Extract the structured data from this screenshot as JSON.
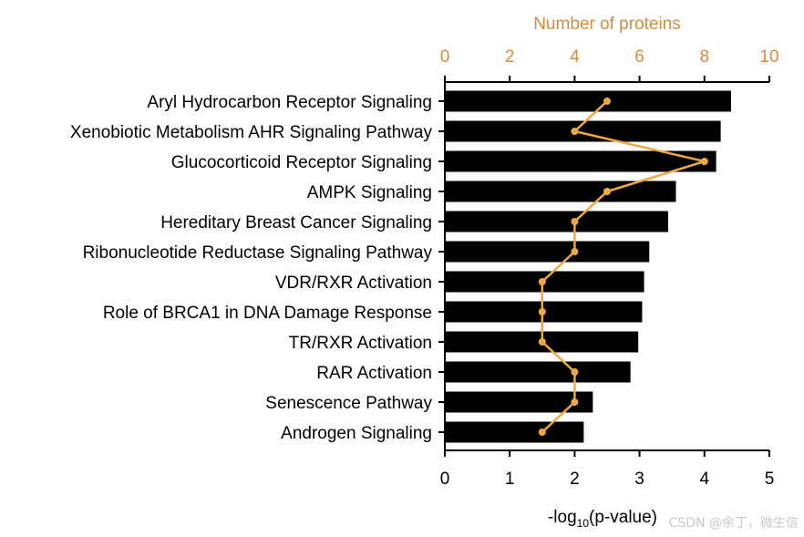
{
  "chart_data": {
    "type": "bar",
    "orientation": "horizontal",
    "categories": [
      "Aryl Hydrocarbon Receptor Signaling",
      "Xenobiotic Metabolism AHR Signaling Pathway",
      "Glucocorticoid Receptor Signaling",
      "AMPK Signaling",
      "Hereditary Breast Cancer Signaling",
      "Ribonucleotide Reductase Signaling Pathway",
      "VDR/RXR Activation",
      "Role of BRCA1 in DNA Damage Response",
      "TR/RXR Activation",
      "RAR Activation",
      "Senescence Pathway",
      "Androgen Signaling"
    ],
    "series": [
      {
        "name": "-log10(p-value)",
        "type": "bar",
        "color": "#000000",
        "values": [
          4.41,
          4.25,
          4.18,
          3.56,
          3.44,
          3.15,
          3.07,
          3.04,
          2.98,
          2.86,
          2.28,
          2.14
        ]
      },
      {
        "name": "Number of proteins",
        "type": "line",
        "color": "#F0A840",
        "values": [
          5,
          4,
          8,
          5,
          4,
          4,
          3,
          3,
          3,
          4,
          4,
          3
        ]
      }
    ],
    "xlabel_bottom_pre": "-log",
    "xlabel_bottom_sub": "10",
    "xlabel_bottom_post": "(p-value)",
    "xlabel_top": "Number of proteins",
    "xlim_bottom": [
      0,
      5
    ],
    "xlim_top": [
      0,
      10
    ],
    "xticks_bottom": [
      "0",
      "1",
      "2",
      "3",
      "4",
      "5"
    ],
    "xticks_top": [
      "0",
      "2",
      "4",
      "6",
      "8",
      "10"
    ],
    "top_axis_color": "#D98A3C"
  },
  "watermark": "CSDN @余丁，微生信"
}
